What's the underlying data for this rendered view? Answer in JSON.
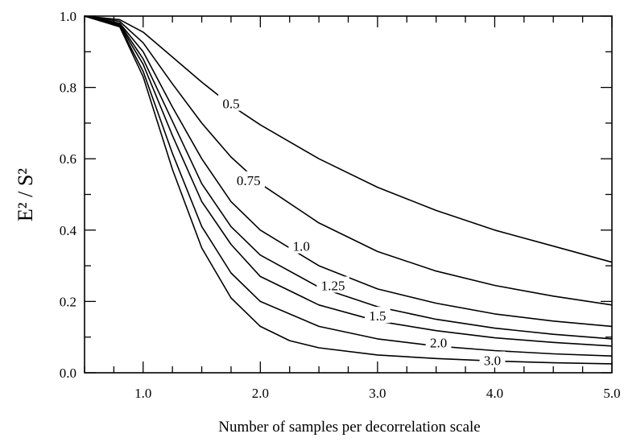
{
  "chart_data": {
    "type": "line",
    "title": "",
    "xlabel": "Number of samples per decorrelation scale",
    "ylabel": "E² / S²",
    "xlim": [
      0.5,
      5.0
    ],
    "ylim": [
      0.0,
      1.0
    ],
    "x_ticks": [
      "1.0",
      "2.0",
      "3.0",
      "4.0",
      "5.0"
    ],
    "y_ticks": [
      "0.0",
      "0.2",
      "0.4",
      "0.6",
      "0.8",
      "1.0"
    ],
    "grid": false,
    "series": [
      {
        "name": "0.5",
        "x": [
          0.5,
          0.8,
          1.0,
          1.25,
          1.5,
          1.75,
          2.0,
          2.5,
          3.0,
          3.5,
          4.0,
          4.5,
          5.0
        ],
        "y": [
          1.0,
          0.99,
          0.955,
          0.885,
          0.815,
          0.75,
          0.695,
          0.6,
          0.52,
          0.455,
          0.4,
          0.355,
          0.31
        ]
      },
      {
        "name": "0.75",
        "x": [
          0.5,
          0.8,
          1.0,
          1.25,
          1.5,
          1.75,
          2.0,
          2.5,
          3.0,
          3.5,
          4.0,
          4.5,
          5.0
        ],
        "y": [
          1.0,
          0.985,
          0.925,
          0.81,
          0.7,
          0.605,
          0.53,
          0.42,
          0.34,
          0.285,
          0.245,
          0.215,
          0.19
        ]
      },
      {
        "name": "1.0",
        "x": [
          0.5,
          0.8,
          1.0,
          1.25,
          1.5,
          1.75,
          2.0,
          2.5,
          3.0,
          3.5,
          4.0,
          4.5,
          5.0
        ],
        "y": [
          1.0,
          0.98,
          0.9,
          0.745,
          0.6,
          0.48,
          0.4,
          0.3,
          0.235,
          0.195,
          0.165,
          0.145,
          0.13
        ]
      },
      {
        "name": "1.25",
        "x": [
          0.5,
          0.8,
          1.0,
          1.25,
          1.5,
          1.75,
          2.0,
          2.5,
          3.0,
          3.5,
          4.0,
          4.5,
          5.0
        ],
        "y": [
          1.0,
          0.978,
          0.88,
          0.705,
          0.53,
          0.41,
          0.33,
          0.24,
          0.185,
          0.15,
          0.125,
          0.108,
          0.095
        ]
      },
      {
        "name": "1.5",
        "x": [
          0.5,
          0.8,
          1.0,
          1.25,
          1.5,
          1.75,
          2.0,
          2.5,
          3.0,
          3.5,
          4.0,
          4.5,
          5.0
        ],
        "y": [
          1.0,
          0.975,
          0.865,
          0.665,
          0.48,
          0.36,
          0.27,
          0.19,
          0.145,
          0.118,
          0.098,
          0.085,
          0.075
        ]
      },
      {
        "name": "2.0",
        "x": [
          0.5,
          0.8,
          1.0,
          1.25,
          1.5,
          1.75,
          2.0,
          2.5,
          3.0,
          3.5,
          4.0,
          4.5,
          5.0
        ],
        "y": [
          1.0,
          0.972,
          0.845,
          0.615,
          0.41,
          0.28,
          0.2,
          0.13,
          0.095,
          0.075,
          0.062,
          0.053,
          0.047
        ]
      },
      {
        "name": "3.0",
        "x": [
          0.5,
          0.8,
          1.0,
          1.25,
          1.5,
          1.75,
          2.0,
          2.25,
          2.5,
          3.0,
          3.5,
          4.0,
          4.5,
          5.0
        ],
        "y": [
          1.0,
          0.97,
          0.83,
          0.57,
          0.35,
          0.21,
          0.13,
          0.09,
          0.07,
          0.05,
          0.04,
          0.033,
          0.028,
          0.025
        ]
      }
    ],
    "curve_labels": [
      {
        "text": "0.5",
        "x": 1.75,
        "y": 0.755
      },
      {
        "text": "0.75",
        "x": 1.9,
        "y": 0.54
      },
      {
        "text": "1.0",
        "x": 2.35,
        "y": 0.355
      },
      {
        "text": "1.25",
        "x": 2.62,
        "y": 0.245
      },
      {
        "text": "1.5",
        "x": 3.0,
        "y": 0.16
      },
      {
        "text": "2.0",
        "x": 3.52,
        "y": 0.085
      },
      {
        "text": "3.0",
        "x": 3.98,
        "y": 0.035
      }
    ]
  }
}
